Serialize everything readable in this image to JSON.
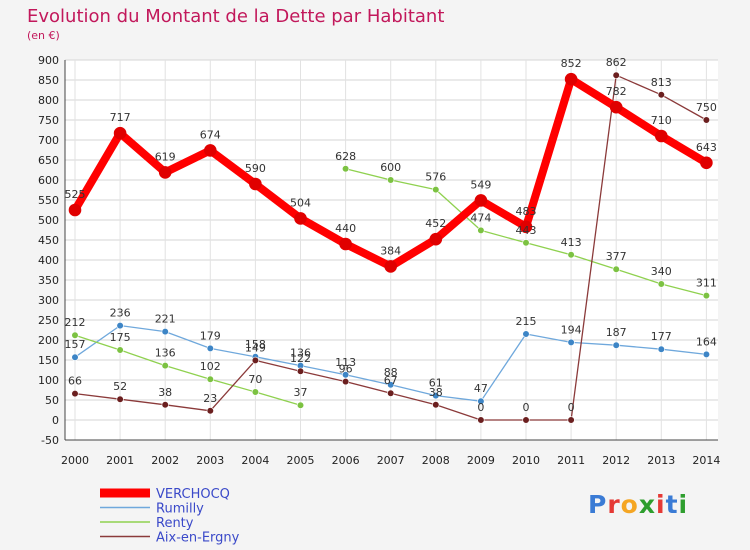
{
  "title": "Evolution du Montant de la Dette par Habitant",
  "subtitle": "(en €)",
  "logo": {
    "text": "Proxiti",
    "colors": [
      "#3a7bd5",
      "#e53935",
      "#f5a623",
      "#2e9e2e",
      "#e53935",
      "#3a7bd5",
      "#2e9e2e"
    ]
  },
  "chart_data": {
    "type": "line",
    "x": [
      2000,
      2001,
      2002,
      2003,
      2004,
      2005,
      2006,
      2007,
      2008,
      2009,
      2010,
      2011,
      2012,
      2013,
      2014
    ],
    "ylim": [
      -50,
      900
    ],
    "yticks": [
      -50,
      0,
      50,
      100,
      150,
      200,
      250,
      300,
      350,
      400,
      450,
      500,
      550,
      600,
      650,
      700,
      750,
      800,
      850,
      900
    ],
    "grid": true,
    "legend_position": "bottom-left",
    "series": [
      {
        "name": "VERCHOCQ",
        "color": "#ff0000",
        "marker": "#e00000",
        "width": 8,
        "values": [
          525,
          717,
          619,
          674,
          590,
          504,
          440,
          384,
          452,
          549,
          483,
          852,
          782,
          710,
          643
        ]
      },
      {
        "name": "Rumilly",
        "color": "#6fa8dc",
        "marker": "#3d85c6",
        "width": 1.3,
        "values": [
          157,
          236,
          221,
          179,
          158,
          136,
          113,
          88,
          61,
          47,
          215,
          194,
          187,
          177,
          164
        ]
      },
      {
        "name": "Renty",
        "color": "#8fd14f",
        "marker": "#7cc242",
        "width": 1.3,
        "values": [
          212,
          175,
          136,
          102,
          70,
          37,
          628,
          600,
          576,
          474,
          443,
          413,
          377,
          340,
          311
        ]
      },
      {
        "name": "Aix-en-Ergny",
        "color": "#8b3a3a",
        "marker": "#6b1f1f",
        "width": 1.3,
        "values": [
          66,
          52,
          38,
          23,
          149,
          122,
          96,
          67,
          38,
          0,
          0,
          0,
          862,
          813,
          750
        ]
      }
    ],
    "segment_breaks": {
      "Renty": [
        [
          5,
          6
        ]
      ]
    }
  }
}
